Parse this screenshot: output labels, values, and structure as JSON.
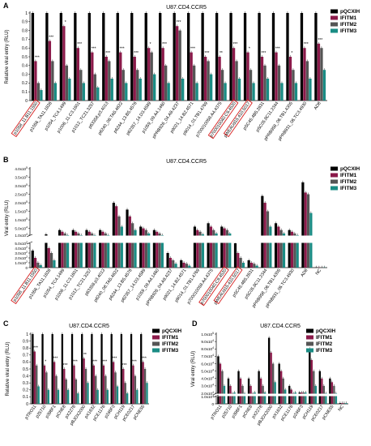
{
  "colors": {
    "pQCXIH": "#000000",
    "IFITM1": "#8b1a4a",
    "IFITM2": "#555555",
    "IFITM3": "#1a8c84",
    "highlight": "#d62020"
  },
  "chart_data": [
    {
      "panel": "A",
      "type": "bar",
      "title": "U87.CD4.CCR5",
      "ylabel": "Relative viral entry (RLU)",
      "ylim": [
        0,
        1.0
      ],
      "yticks": [
        "0",
        "0.1",
        "0.2",
        "0.3",
        "0.4",
        "0.5",
        "0.6",
        "0.7",
        "0.8",
        "0.9",
        "1"
      ],
      "categories": [
        "p1058_11.B11.1550",
        "p1056_TA11.1826",
        "p1054_TC4.1499",
        "p1006_11.C3.1601",
        "p1012_TC21.3257",
        "p63358.p3.4013",
        "p6240_08.TA5.4622",
        "p6244_13.B5.4576",
        "p62357_14.D3.4589",
        "p1059_09.A4.1460",
        "pPRB926_04.A9.4237",
        "p9021_14.B2.4571",
        "p9014_01.TB1.4769",
        "p700010058.A4.4375",
        "p700010040.C9.4520",
        "pWEAUd15.410.5017",
        "pSC45.4B5.2631",
        "pSC05.8C11.2344",
        "pPRB958_06.TB1.4305",
        "pPRB931_06.TC3.4930",
        "AD8"
      ],
      "highlighted": [
        "p1058_11.B11.1550",
        "p700010040.C9.4520",
        "pWEAUd15.410.5017"
      ],
      "series": [
        {
          "name": "pQCXIH",
          "values": [
            1,
            1,
            1,
            1,
            1,
            1,
            1,
            1,
            1,
            1,
            1,
            1,
            1,
            1,
            1,
            1,
            1,
            1,
            1,
            1,
            1
          ]
        },
        {
          "name": "IFITM1",
          "values": [
            0.45,
            0.68,
            0.85,
            0.6,
            0.55,
            0.5,
            0.55,
            0.5,
            0.6,
            0.6,
            0.85,
            0.55,
            0.5,
            0.5,
            0.6,
            0.55,
            0.5,
            0.55,
            0.5,
            0.6,
            0.65
          ]
        },
        {
          "name": "IFITM2",
          "values": [
            0.2,
            0.45,
            0.4,
            0.35,
            0.3,
            0.45,
            0.35,
            0.35,
            0.55,
            0.4,
            0.8,
            0.4,
            0.45,
            0.35,
            0.45,
            0.35,
            0.4,
            0.4,
            0.35,
            0.45,
            0.6
          ]
        },
        {
          "name": "IFITM3",
          "values": [
            0.12,
            0.2,
            0.25,
            0.2,
            0.15,
            0.25,
            0.2,
            0.25,
            0.3,
            0.2,
            0.25,
            0.2,
            0.3,
            0.2,
            0.25,
            0.2,
            0.25,
            0.2,
            0.2,
            0.25,
            0.35
          ]
        }
      ],
      "annotations": [
        "***",
        "***",
        "*",
        "***",
        "***",
        "***",
        "***",
        "***",
        "*",
        "***",
        "***",
        "***",
        "***",
        "**",
        "***",
        "*",
        "***",
        "***",
        "*",
        "***",
        "***"
      ]
    },
    {
      "panel": "B",
      "type": "bar",
      "title": "U87.CD4.CCR5",
      "ylabel": "Viral entry (RLU)",
      "y_axis_break": true,
      "yticks_upper": [
        "1.0x10^4",
        "5.0x10^4",
        "1.0x10^5",
        "1.5x10^5",
        "2.0x10^5",
        "2.5x10^5",
        "3.0x10^5",
        "3.5x10^5",
        "4.0x10^5"
      ],
      "yticks_lower": [
        "0",
        "1.0x10^2",
        "2.0x10^2",
        "3.0x10^2",
        "4.0x10^2",
        "5.0x10^2"
      ],
      "categories": [
        "p1058_11.B11.1550",
        "p1056_TA11.1826",
        "p1054_TC4.1499",
        "p1006_11.C3.1601",
        "p1012_TC21.3257",
        "p63358.p3.4013",
        "p6240_08.TA5.4622",
        "p6244_13.B5.4576",
        "p62357_14.D3.4589",
        "p1059_09.A4.1460",
        "pPRB926_04.A9.4237",
        "p9021_14.B2.4571",
        "p9014_01.TB1.4769",
        "p700010058.A4.4375",
        "p700010040.C9.4520",
        "pWEAUd15.410.5017",
        "pSC45.4B5.2631",
        "pSC05.8C11.2344",
        "pPRB958_06.TB1.4305",
        "pPRB931_06.TC3.4930",
        "AD8",
        "NC"
      ],
      "highlighted": [
        "p1058_11.B11.1550",
        "p700010040.C9.4520",
        "pWEAUd15.410.5017"
      ],
      "series": [
        {
          "name": "pQCXIH",
          "values": [
            350,
            600,
            40000,
            40000,
            40000,
            40000,
            200000,
            160000,
            60000,
            40000,
            300,
            150,
            60000,
            80000,
            60000,
            500,
            150,
            240000,
            80000,
            40000,
            320000,
            5
          ]
        },
        {
          "name": "IFITM1",
          "values": [
            200,
            400,
            30000,
            30000,
            30000,
            30000,
            180000,
            120000,
            50000,
            30000,
            200,
            100,
            40000,
            60000,
            50000,
            300,
            100,
            200000,
            60000,
            30000,
            260000,
            5
          ]
        },
        {
          "name": "IFITM2",
          "values": [
            100,
            300,
            20000,
            20000,
            20000,
            20000,
            120000,
            80000,
            40000,
            20000,
            150,
            80,
            30000,
            40000,
            40000,
            200,
            80,
            150000,
            40000,
            20000,
            250000,
            5
          ]
        },
        {
          "name": "IFITM3",
          "values": [
            50,
            150,
            10000,
            10000,
            10000,
            10000,
            60000,
            40000,
            20000,
            10000,
            80,
            40,
            15000,
            20000,
            20000,
            100,
            40,
            60000,
            20000,
            10000,
            140000,
            5
          ]
        }
      ]
    },
    {
      "panel": "C",
      "type": "bar",
      "title": "U87.CD4.CCR5",
      "ylabel": "Relative viral entry (RLU)",
      "ylim": [
        0,
        1.0
      ],
      "yticks": [
        "0",
        "0.1",
        "0.2",
        "0.3",
        "0.4",
        "0.5",
        "0.6",
        "0.7",
        "0.8",
        "0.9",
        "1"
      ],
      "categories": [
        "pTRO11",
        "p25710",
        "p398F1",
        "pCNE8",
        "pX2278",
        "pBJOX2000",
        "pX1632",
        "pCE1176",
        "p246F3",
        "pCH119",
        "pCE0217",
        "pCNE55"
      ],
      "series": [
        {
          "name": "pQCXIH",
          "values": [
            1,
            1,
            1,
            1,
            1,
            1,
            1,
            1,
            1,
            1,
            1,
            1
          ]
        },
        {
          "name": "IFITM1",
          "values": [
            0.75,
            0.55,
            0.6,
            0.5,
            0.55,
            0.65,
            0.55,
            0.55,
            0.6,
            0.5,
            0.55,
            0.6
          ]
        },
        {
          "name": "IFITM2",
          "values": [
            0.55,
            0.45,
            0.4,
            0.35,
            0.35,
            0.5,
            0.4,
            0.4,
            0.45,
            0.3,
            0.4,
            0.5
          ]
        },
        {
          "name": "IFITM3",
          "values": [
            0.25,
            0.2,
            0.2,
            0.2,
            0.15,
            0.3,
            0.2,
            0.2,
            0.25,
            0.15,
            0.2,
            0.3
          ]
        }
      ],
      "annotations": [
        "***",
        "*",
        "***",
        "***",
        "***",
        "**",
        "***",
        "***",
        "***",
        "***",
        "***",
        "***"
      ]
    },
    {
      "panel": "D",
      "type": "bar",
      "title": "U87.CD4.CCR5",
      "ylabel": "Viral entry (RLU)",
      "y_axis_break": true,
      "yticks_upper": [
        "2.0x10^4",
        "3.0x10^4",
        "4.0x10^4",
        "5.0x10^4",
        "6.0x10^4",
        "7.0x10^4",
        "8.0x10^4",
        "9.0x10^4",
        "1.0x10^5"
      ],
      "yticks_lower": [
        "0",
        "1.0x10^3"
      ],
      "categories": [
        "pTRO11",
        "p25710",
        "p398F1",
        "pCNE8",
        "pX2278",
        "pBJOX2000",
        "pX1632",
        "pCE1176",
        "p246F3",
        "pCH119",
        "pCE0217",
        "pCNE55",
        "NC"
      ],
      "series": [
        {
          "name": "pQCXIH",
          "values": [
            70000,
            40000,
            50000,
            40000,
            50000,
            95000,
            60000,
            30000,
            10000,
            80000,
            50000,
            40000,
            100
          ]
        },
        {
          "name": "IFITM1",
          "values": [
            60000,
            30000,
            40000,
            30000,
            40000,
            75000,
            50000,
            25000,
            8000,
            65000,
            40000,
            35000,
            100
          ]
        },
        {
          "name": "IFITM2",
          "values": [
            50000,
            20000,
            30000,
            20000,
            30000,
            60000,
            40000,
            20000,
            6000,
            50000,
            30000,
            30000,
            100
          ]
        },
        {
          "name": "IFITM3",
          "values": [
            30000,
            10000,
            20000,
            10000,
            15000,
            35000,
            25000,
            10000,
            3000,
            30000,
            20000,
            20000,
            100
          ]
        }
      ]
    }
  ],
  "legend": [
    "pQCXIH",
    "IFITM1",
    "IFITM2",
    "IFITM3"
  ],
  "panel_letters": [
    "A",
    "B",
    "C",
    "D"
  ]
}
